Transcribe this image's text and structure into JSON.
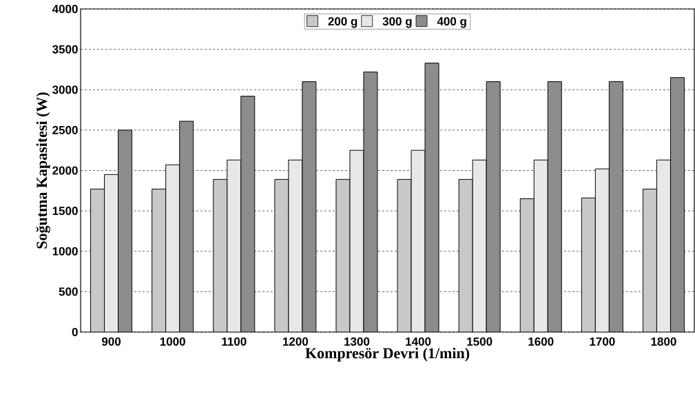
{
  "chart_data": {
    "type": "bar",
    "xlabel": "Kompresör Devri (1/min)",
    "ylabel": "Soğutma Kapasitesi (W)",
    "categories": [
      "900",
      "1000",
      "1100",
      "1200",
      "1300",
      "1400",
      "1500",
      "1600",
      "1700",
      "1800"
    ],
    "series": [
      {
        "name": "200 g",
        "color": "#c8c8c8",
        "values": [
          1770,
          1770,
          1890,
          1890,
          1890,
          1890,
          1890,
          1650,
          1660,
          1770
        ]
      },
      {
        "name": "300 g",
        "color": "#e8e8e8",
        "values": [
          1950,
          2070,
          2130,
          2130,
          2250,
          2250,
          2130,
          2130,
          2020,
          2130
        ]
      },
      {
        "name": "400 g",
        "color": "#8c8c8c",
        "values": [
          2500,
          2610,
          2920,
          3100,
          3220,
          3330,
          3100,
          3100,
          3100,
          3150
        ]
      }
    ],
    "ylim": [
      0,
      4000
    ],
    "yticks": [
      0,
      500,
      1000,
      1500,
      2000,
      2500,
      3000,
      3500,
      4000
    ],
    "grid": "y",
    "legend": "top"
  }
}
